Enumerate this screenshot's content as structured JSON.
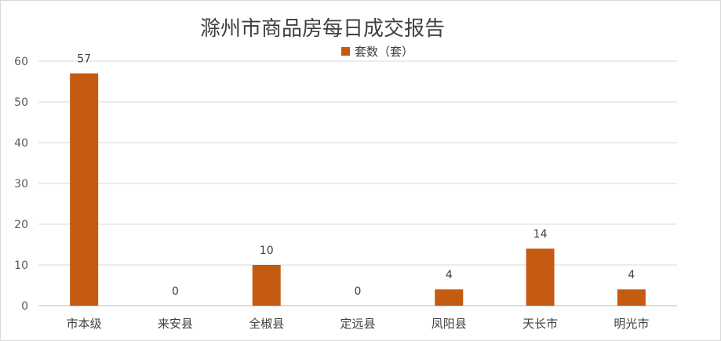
{
  "chart_data": {
    "type": "bar",
    "title": "滁州市商品房每日成交报告",
    "categories": [
      "市本级",
      "来安县",
      "全椒县",
      "定远县",
      "凤阳县",
      "天长市",
      "明光市"
    ],
    "series": [
      {
        "name": "套数（套）",
        "values": [
          57,
          0,
          10,
          0,
          4,
          14,
          4
        ],
        "color": "#c55a11"
      }
    ],
    "ylim": [
      0,
      60
    ],
    "yticks": [
      0,
      10,
      20,
      30,
      40,
      50,
      60
    ],
    "grid": true,
    "legend_position": "top-center",
    "data_labels": true
  }
}
